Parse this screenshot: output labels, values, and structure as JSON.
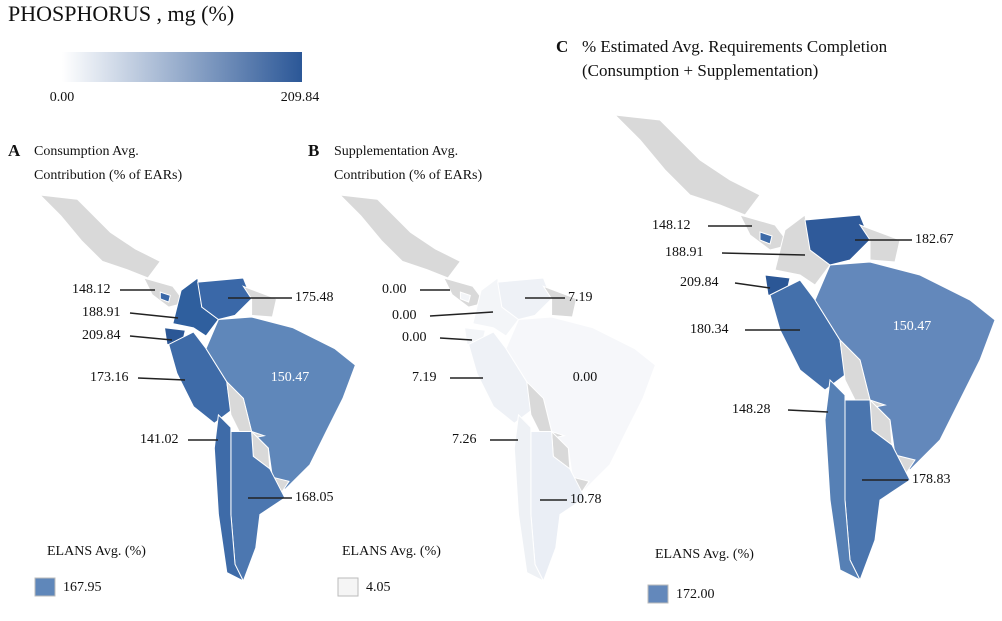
{
  "title": "PHOSPHORUS , mg (%)",
  "legend": {
    "min": "0.00",
    "max": "209.84"
  },
  "panels": [
    {
      "letter": "A",
      "title_lines": [
        "Consumption Avg.",
        "Contribution (% of EARs)"
      ],
      "labels": [
        "148.12",
        "188.91",
        "209.84",
        "173.16",
        "141.02",
        "175.48",
        "150.47",
        "168.05"
      ],
      "elans_label": "ELANS Avg. (%)",
      "elans_value": "167.95"
    },
    {
      "letter": "B",
      "title_lines": [
        "Supplementation Avg.",
        "Contribution (% of EARs)"
      ],
      "labels": [
        "0.00",
        "0.00",
        "0.00",
        "7.19",
        "7.26",
        "7.19",
        "0.00",
        "10.78"
      ],
      "elans_label": "ELANS Avg. (%)",
      "elans_value": "4.05"
    },
    {
      "letter": "C",
      "title_lines": [
        "% Estimated Avg. Requirements Completion",
        "(Consumption + Supplementation)"
      ],
      "labels": [
        "148.12",
        "188.91",
        "209.84",
        "180.34",
        "148.28",
        "182.67",
        "150.47",
        "178.83"
      ],
      "elans_label": "ELANS Avg. (%)",
      "elans_value": "172.00"
    }
  ]
}
